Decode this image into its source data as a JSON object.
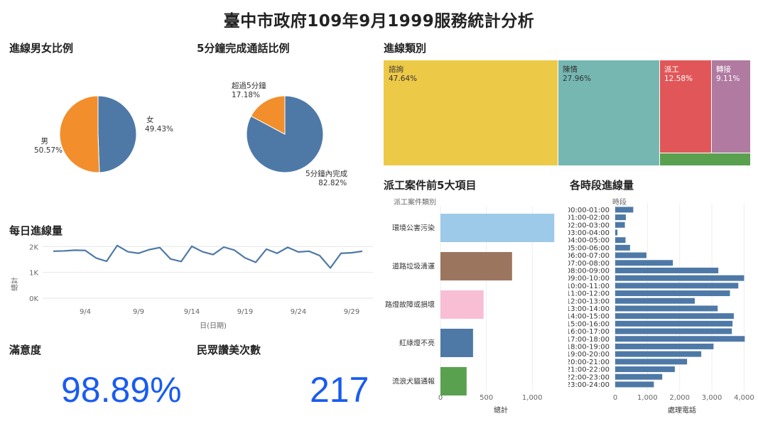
{
  "title": "臺中市政府109年9月1999服務統計分析",
  "panels": {
    "gender": "進線男女比例",
    "five_min": "5分鐘完成通話比例",
    "category": "進線類別",
    "daily": "每日進線量",
    "dispatch": "派工案件前5大項目",
    "hourly": "各時段進線量",
    "satisfaction": "滿意度",
    "praise": "民眾讚美次數"
  },
  "kpi": {
    "satisfaction": "98.89%",
    "praise": "217"
  },
  "colors": {
    "blue": "#4e79a7",
    "orange": "#f28e2b",
    "yellow": "#edc948",
    "teal": "#76b7b2",
    "red": "#e15759",
    "purple": "#b07aa1",
    "green": "#59a14f",
    "brown": "#9c755f",
    "lightblue": "#9ecae9",
    "pink": "#f8bfd4",
    "kpi": "#1a5cf0"
  },
  "chart_data": [
    {
      "type": "pie",
      "title": "進線男女比例",
      "slices": [
        {
          "label": "女",
          "value": 49.43,
          "value_label": "49.43%",
          "color": "#4e79a7"
        },
        {
          "label": "男",
          "value": 50.57,
          "value_label": "50.57%",
          "color": "#f28e2b"
        }
      ]
    },
    {
      "type": "pie",
      "title": "5分鐘完成通話比例",
      "slices": [
        {
          "label": "5分鐘內完成",
          "value": 82.82,
          "value_label": "82.82%",
          "color": "#4e79a7"
        },
        {
          "label": "超過5分鐘",
          "value": 17.18,
          "value_label": "17.18%",
          "color": "#f28e2b"
        }
      ]
    },
    {
      "type": "heatmap",
      "title": "進線類別",
      "tiles": [
        {
          "label": "諮詢",
          "value": 47.64,
          "value_label": "47.64%",
          "color": "#edc948"
        },
        {
          "label": "陳情",
          "value": 27.96,
          "value_label": "27.96%",
          "color": "#76b7b2"
        },
        {
          "label": "派工",
          "value": 12.58,
          "value_label": "12.58%",
          "color": "#e15759"
        },
        {
          "label": "轉接",
          "value": 9.11,
          "value_label": "9.11%",
          "color": "#b07aa1"
        },
        {
          "label": "",
          "value": 2.71,
          "value_label": "",
          "color": "#59a14f"
        }
      ]
    },
    {
      "type": "line",
      "title": "每日進線量",
      "xlabel": "日(日期)",
      "ylabel": "總計",
      "x": [
        1,
        2,
        3,
        4,
        5,
        6,
        7,
        8,
        9,
        10,
        11,
        12,
        13,
        14,
        15,
        16,
        17,
        18,
        19,
        20,
        21,
        22,
        23,
        24,
        25,
        26,
        27,
        28,
        29,
        30
      ],
      "values": [
        1820,
        1830,
        1860,
        1850,
        1560,
        1430,
        2040,
        1800,
        1740,
        1880,
        1960,
        1520,
        1420,
        2010,
        1800,
        1690,
        1980,
        1860,
        1560,
        1390,
        1900,
        1740,
        1970,
        1790,
        1820,
        1650,
        1170,
        1740,
        1760,
        1820
      ],
      "xticks": [
        4,
        9,
        14,
        19,
        24,
        29
      ],
      "xtick_labels": [
        "9/4",
        "9/9",
        "9/14",
        "9/19",
        "9/24",
        "9/29"
      ],
      "yticks": [
        0,
        1000,
        2000
      ],
      "ytick_labels": [
        "0K",
        "1K",
        "2K"
      ],
      "ylim": [
        0,
        2200
      ],
      "xlim": [
        0,
        31
      ],
      "color": "#4e79a7"
    },
    {
      "type": "bar",
      "title": "派工案件前5大項目",
      "orientation": "horizontal",
      "header": "派工案件類別",
      "categories": [
        "環境公害污染",
        "道路垃圾清運",
        "路燈故障或損壞",
        "紅綠燈不亮",
        "流浪犬貓通報"
      ],
      "values": [
        1240,
        780,
        470,
        355,
        285
      ],
      "colors": [
        "#9ecae9",
        "#9c755f",
        "#f8bfd4",
        "#4e79a7",
        "#59a14f"
      ],
      "xticks": [
        0,
        500,
        1000
      ],
      "xtick_labels": [
        "0",
        "500",
        "1,000"
      ],
      "xlim": [
        0,
        1300
      ],
      "xlabel": "總計"
    },
    {
      "type": "bar",
      "title": "各時段進線量",
      "orientation": "horizontal",
      "header": "時段",
      "categories": [
        "00:00-01:00",
        "01:00-02:00",
        "02:00-03:00",
        "03:00-04:00",
        "04:00-05:00",
        "05:00-06:00",
        "06:00-07:00",
        "07:00-08:00",
        "08:00-09:00",
        "09:00-10:00",
        "10:00-11:00",
        "11:00-12:00",
        "12:00-13:00",
        "13:00-14:00",
        "14:00-15:00",
        "15:00-16:00",
        "16:00-17:00",
        "17:00-18:00",
        "18:00-19:00",
        "19:00-20:00",
        "20:00-21:00",
        "21:00-22:00",
        "22:00-23:00",
        "23:00-24:00"
      ],
      "values": [
        560,
        330,
        300,
        70,
        320,
        460,
        970,
        1790,
        3200,
        4000,
        3820,
        3560,
        2470,
        3180,
        3680,
        3640,
        3620,
        4020,
        3050,
        2670,
        2230,
        1850,
        1460,
        1200
      ],
      "color": "#4e79a7",
      "xticks": [
        0,
        1000,
        2000,
        3000,
        4000
      ],
      "xtick_labels": [
        "0",
        "1,000",
        "2,000",
        "3,000",
        "4,000"
      ],
      "xlim": [
        0,
        4100
      ],
      "xlabel": "處理電話"
    }
  ]
}
